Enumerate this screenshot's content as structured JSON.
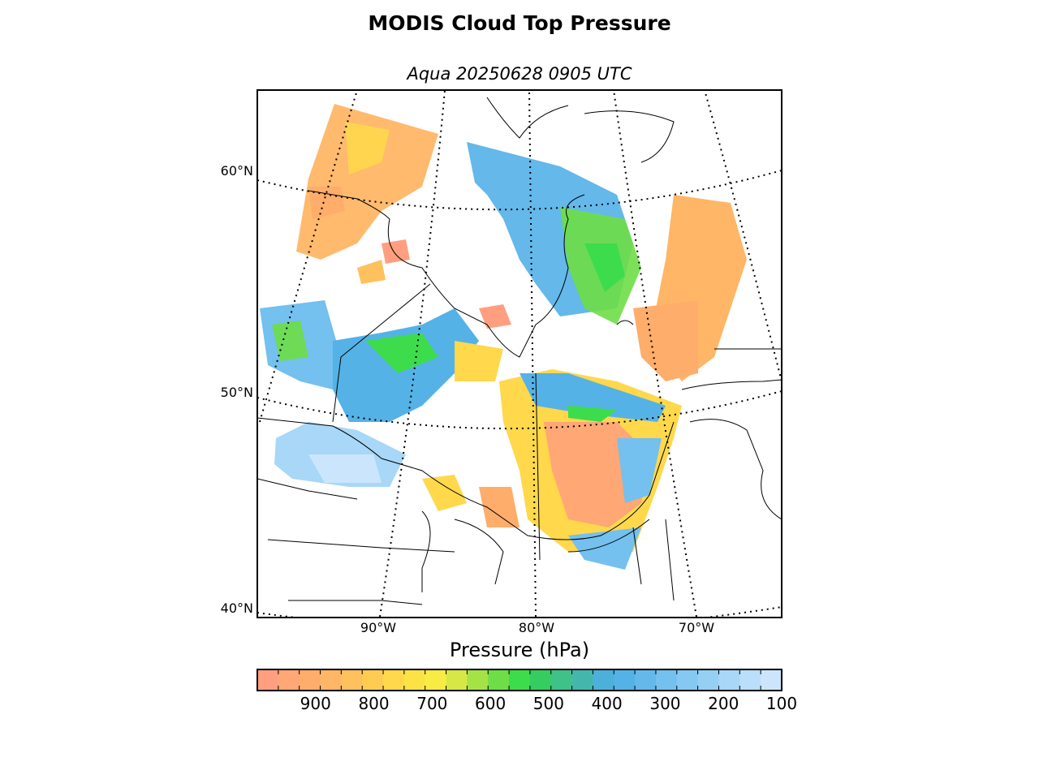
{
  "figure": {
    "title": "MODIS Cloud Top Pressure",
    "subtitle": "Aqua 20250628 0905 UTC"
  },
  "map": {
    "region": "Eastern Canada / Great Lakes",
    "grid": "dotted",
    "lat_labels": [
      "60°N",
      "50°N",
      "40°N"
    ],
    "lon_labels": [
      "90°W",
      "80°W",
      "70°W"
    ]
  },
  "colorbar": {
    "title": "Pressure (hPa)",
    "range": [
      1000,
      100
    ],
    "ticks": [
      "900",
      "800",
      "700",
      "600",
      "500",
      "400",
      "300",
      "200",
      "100"
    ],
    "colors": [
      "#ff9f80",
      "#ffa775",
      "#ffad6b",
      "#ffb666",
      "#ffc15e",
      "#ffcc52",
      "#ffd84c",
      "#fbe346",
      "#f8ec44",
      "#d6e845",
      "#a5e246",
      "#6ede46",
      "#3ddc4d",
      "#35cd62",
      "#3ec289",
      "#44b7ad",
      "#4cb0d8",
      "#55b2e6",
      "#64b8ea",
      "#74c0ee",
      "#85c8f1",
      "#96cff4",
      "#a8d7f7",
      "#badffa",
      "#cbe6fc"
    ]
  }
}
